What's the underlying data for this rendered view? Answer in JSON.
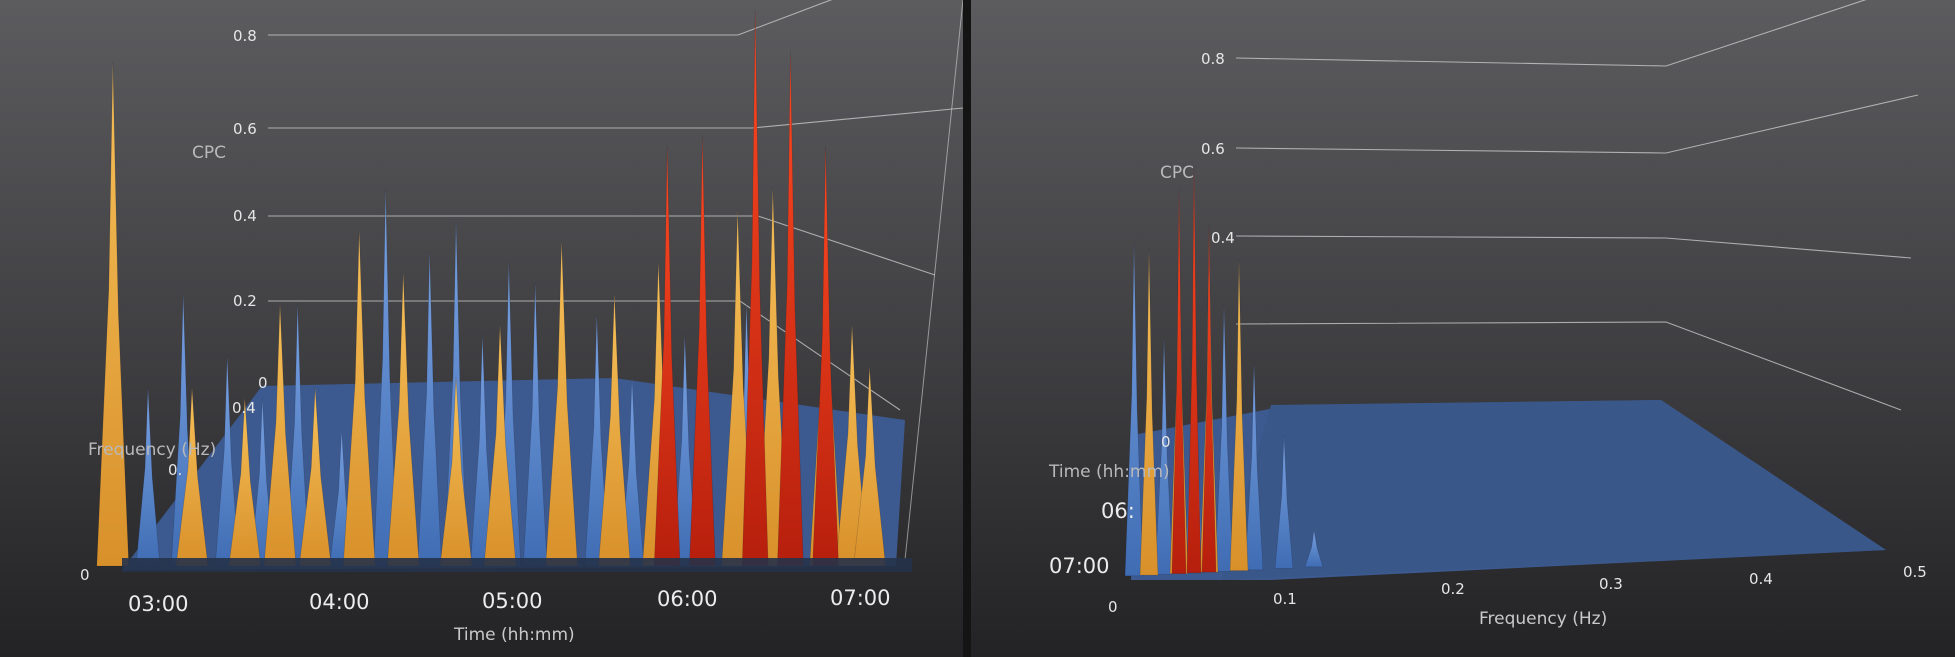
{
  "chart_data": [
    {
      "type": "3d-surface",
      "view": "time-axis-front",
      "zlabel": "CPC",
      "xlabel": "Time (hh:mm)",
      "ylabel": "Frequency (Hz)",
      "z_ticks": [
        "0",
        "0.2",
        "0.4",
        "0.6",
        "0.8"
      ],
      "corner_tick": "0",
      "x_ticks": [
        "03:00",
        "04:00",
        "05:00",
        "06:00",
        "07:00"
      ],
      "y_ticks_partial": [
        "0.4",
        "0."
      ],
      "zlim": [
        0,
        0.8
      ],
      "colors": {
        "blue": "#5f8fd6",
        "orange": "#f0ad3c",
        "red": "#e8321a",
        "floor": "#3d5a8c"
      },
      "series": [
        {
          "color_group": "blue",
          "x": [
            2.8,
            3.0,
            3.2,
            3.45,
            3.65,
            3.85,
            4.1,
            4.35,
            4.6,
            4.75,
            4.9,
            5.05,
            5.2,
            5.35,
            5.55,
            5.75,
            6.05,
            6.4
          ],
          "y": [
            0.45,
            0.17,
            0.26,
            0.2,
            0.16,
            0.25,
            0.13,
            0.36,
            0.3,
            0.33,
            0.22,
            0.29,
            0.27,
            0.2,
            0.24,
            0.18,
            0.22,
            0.25
          ]
        },
        {
          "color_group": "orange",
          "x": [
            2.8,
            3.25,
            3.55,
            3.75,
            3.95,
            4.2,
            4.45,
            4.75,
            5.0,
            5.35,
            5.65,
            5.9,
            6.35,
            6.55,
            6.85,
            7.0,
            7.1
          ],
          "y": [
            0.48,
            0.17,
            0.16,
            0.25,
            0.17,
            0.32,
            0.28,
            0.18,
            0.23,
            0.31,
            0.26,
            0.29,
            0.34,
            0.36,
            0.34,
            0.23,
            0.19
          ]
        },
        {
          "color_group": "red",
          "x": [
            5.95,
            6.15,
            6.45,
            6.65,
            6.85
          ],
          "y": [
            0.4,
            0.41,
            0.53,
            0.49,
            0.4
          ]
        }
      ]
    },
    {
      "type": "3d-surface",
      "view": "frequency-axis-front",
      "zlabel": "CPC",
      "xlabel": "Frequency (Hz)",
      "ylabel": "Time (hh:mm)",
      "z_ticks": [
        "0.4",
        "0.6",
        "0.8"
      ],
      "corner_tick": "0",
      "x_ticks": [
        "0.1",
        "0.2",
        "0.3",
        "0.4",
        "0.5"
      ],
      "y_ticks": [
        "06:",
        "07:00"
      ],
      "y_ticks_partial": [
        "0"
      ],
      "zlim": [
        0,
        0.8
      ],
      "series": [
        {
          "color_group": "blue",
          "x": [
            0.0,
            0.02,
            0.04,
            0.06,
            0.08,
            0.1,
            0.12
          ],
          "y": [
            0.45,
            0.32,
            0.4,
            0.36,
            0.28,
            0.18,
            0.05
          ]
        },
        {
          "color_group": "orange",
          "x": [
            0.01,
            0.03,
            0.05,
            0.07
          ],
          "y": [
            0.44,
            0.47,
            0.45,
            0.42
          ]
        },
        {
          "color_group": "red",
          "x": [
            0.03,
            0.04,
            0.05
          ],
          "y": [
            0.52,
            0.55,
            0.47
          ]
        }
      ]
    }
  ]
}
